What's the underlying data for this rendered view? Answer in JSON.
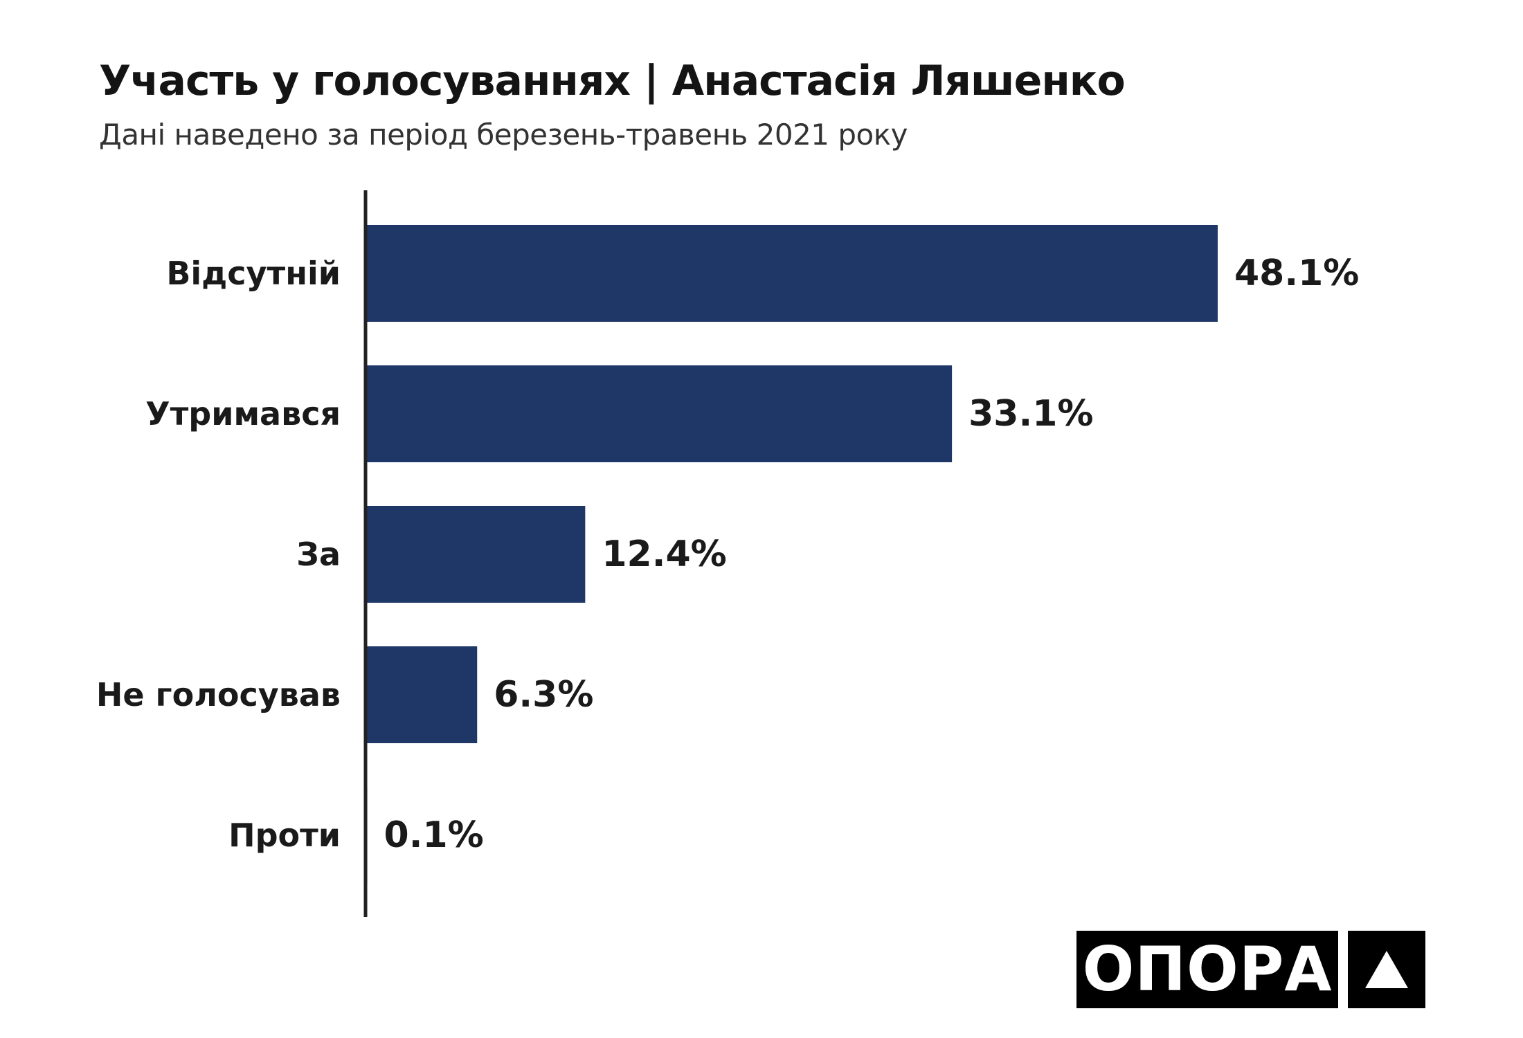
{
  "header": {
    "title": "Участь у голосуваннях | Анастасія Ляшенко",
    "subtitle": "Дані наведено за період березень-травень 2021 року"
  },
  "logo": {
    "text": "ОПОРА",
    "icon": "triangle-icon"
  },
  "colors": {
    "bar": "#1f3767",
    "text": "#1a1a1a",
    "axis": "#222222"
  },
  "chart_data": {
    "type": "bar",
    "orientation": "horizontal",
    "categories": [
      "Відсутній",
      "Утримався",
      "За",
      "Не голосував",
      "Проти"
    ],
    "values": [
      48.1,
      33.1,
      12.4,
      6.3,
      0.1
    ],
    "value_labels": [
      "48.1%",
      "33.1%",
      "12.4%",
      "6.3%",
      "0.1%"
    ],
    "xlim": [
      0,
      50
    ],
    "grid": false,
    "legend": "none"
  }
}
